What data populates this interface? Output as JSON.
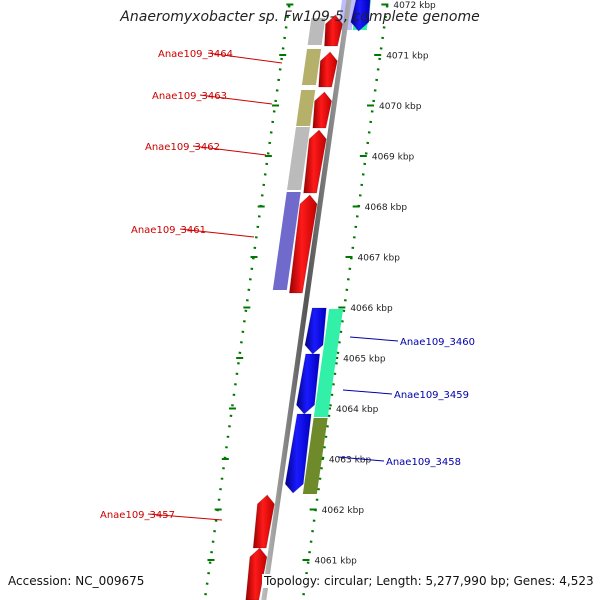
{
  "title": "Anaeromyxobacter sp. Fw109-5, complete genome",
  "accession": "Accession: NC_009675",
  "topology": "Topology: circular; Length: 5,277,990 bp; Genes: 4,523",
  "scale": {
    "unit": "kbp",
    "ticks": [
      {
        "kbp": 4072,
        "label": "4072 kbp"
      },
      {
        "kbp": 4071,
        "label": "4071 kbp"
      },
      {
        "kbp": 4070,
        "label": "4070 kbp"
      },
      {
        "kbp": 4069,
        "label": "4069 kbp"
      },
      {
        "kbp": 4068,
        "label": "4068 kbp"
      },
      {
        "kbp": 4067,
        "label": "4067 kbp"
      },
      {
        "kbp": 4066,
        "label": "4066 kbp"
      },
      {
        "kbp": 4065,
        "label": "4065 kbp"
      },
      {
        "kbp": 4064,
        "label": "4064 kbp"
      },
      {
        "kbp": 4063,
        "label": "4063 kbp"
      },
      {
        "kbp": 4062,
        "label": "4062 kbp"
      },
      {
        "kbp": 4061,
        "label": "4061 kbp"
      }
    ]
  },
  "gene_labels": [
    {
      "name": "Anae109_3464",
      "strand": "reverse",
      "color": "#cc0000"
    },
    {
      "name": "Anae109_3463",
      "strand": "reverse",
      "color": "#cc0000"
    },
    {
      "name": "Anae109_3462",
      "strand": "reverse",
      "color": "#cc0000"
    },
    {
      "name": "Anae109_3461",
      "strand": "reverse",
      "color": "#cc0000"
    },
    {
      "name": "Anae109_3460",
      "strand": "forward",
      "color": "#0000aa"
    },
    {
      "name": "Anae109_3459",
      "strand": "forward",
      "color": "#0000aa"
    },
    {
      "name": "Anae109_3458",
      "strand": "forward",
      "color": "#0000aa"
    },
    {
      "name": "Anae109_3457",
      "strand": "reverse",
      "color": "#cc0000"
    }
  ],
  "colors": {
    "reverse_cds": "#ff0000",
    "forward_cds": "#0000ff",
    "backbone": "#888888",
    "tick_marks": "#007700",
    "cog_tan": "#b5b06a",
    "cog_grey": "#bbbbbb",
    "cog_purple": "#6f6acb",
    "cog_mint": "#33f0a8",
    "cog_olive": "#6f8a2a"
  }
}
